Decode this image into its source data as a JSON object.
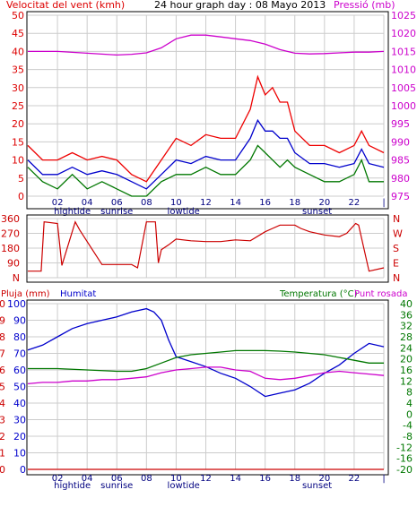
{
  "header": {
    "left": "Velocitat del vent (kmh)",
    "center": "24 hour graph day : 08 Mayo 2013",
    "right": "Pressió (mb)"
  },
  "colors": {
    "wind": "#dd0000",
    "wind_dir": "#cc0000",
    "pressure": "#cc00cc",
    "gust": "#ee0000",
    "mean": "#0000cc",
    "green": "#007700",
    "humidity": "#0000cc",
    "temperature": "#007700",
    "dewpoint": "#cc00cc",
    "rain": "#cc0000",
    "grid": "#cccccc"
  },
  "x_ticks": [
    "02",
    "04",
    "06",
    "08",
    "10",
    "12",
    "14",
    "16",
    "18",
    "20",
    "22",
    "|"
  ],
  "x_events": [
    "hightide",
    "sunrise",
    "lowtide",
    "sunset"
  ],
  "chart_data": [
    {
      "name": "wind_pressure",
      "type": "line",
      "ylim_left": [
        0,
        50
      ],
      "yticks_left": [
        "0",
        "5",
        "10",
        "15",
        "20",
        "25",
        "30",
        "35",
        "40",
        "45",
        "50"
      ],
      "ylim_right": [
        975,
        1025
      ],
      "yticks_right": [
        "975",
        "980",
        "985",
        "990",
        "995",
        "1000",
        "1005",
        "1010",
        "1015",
        "1020",
        "1025"
      ],
      "series": [
        {
          "key": "pressure",
          "axis": "right",
          "x": [
            0,
            2,
            4,
            6,
            7,
            8,
            9,
            10,
            11,
            12,
            13,
            14,
            15,
            16,
            17,
            18,
            19,
            20,
            21,
            22,
            23,
            24
          ],
          "y": [
            1015,
            1015,
            1014.5,
            1014,
            1014.2,
            1014.6,
            1016,
            1018.5,
            1019.5,
            1019.5,
            1019,
            1018.5,
            1018,
            1017,
            1015.5,
            1014.5,
            1014.3,
            1014.4,
            1014.6,
            1014.8,
            1014.8,
            1015
          ]
        },
        {
          "key": "gust",
          "axis": "left",
          "x": [
            0,
            1,
            2,
            3,
            4,
            5,
            6,
            7,
            8,
            9,
            10,
            11,
            12,
            13,
            14,
            15,
            15.5,
            16,
            16.5,
            17,
            17.5,
            18,
            19,
            20,
            21,
            22,
            22.5,
            23,
            24
          ],
          "y": [
            14,
            10,
            10,
            12,
            10,
            11,
            10,
            6,
            4,
            10,
            16,
            14,
            17,
            16,
            16,
            24,
            33,
            28,
            30,
            26,
            26,
            18,
            14,
            14,
            12,
            14,
            18,
            14,
            12
          ]
        },
        {
          "key": "mean",
          "axis": "left",
          "x": [
            0,
            1,
            2,
            3,
            4,
            5,
            6,
            7,
            8,
            9,
            10,
            11,
            12,
            13,
            14,
            15,
            15.5,
            16,
            16.5,
            17,
            17.5,
            18,
            19,
            20,
            21,
            22,
            22.5,
            23,
            24
          ],
          "y": [
            10,
            6,
            6,
            8,
            6,
            7,
            6,
            4,
            2,
            6,
            10,
            9,
            11,
            10,
            10,
            16,
            21,
            18,
            18,
            16,
            16,
            12,
            9,
            9,
            8,
            9,
            13,
            9,
            8
          ]
        },
        {
          "key": "green",
          "axis": "left",
          "x": [
            0,
            1,
            2,
            3,
            4,
            5,
            6,
            7,
            8,
            9,
            10,
            11,
            12,
            13,
            14,
            15,
            15.5,
            16,
            16.5,
            17,
            17.5,
            18,
            19,
            20,
            21,
            22,
            22.5,
            23,
            24
          ],
          "y": [
            8,
            4,
            2,
            6,
            2,
            4,
            2,
            0,
            0,
            4,
            6,
            6,
            8,
            6,
            6,
            10,
            14,
            12,
            10,
            8,
            10,
            8,
            6,
            4,
            4,
            6,
            10,
            4,
            4
          ]
        }
      ]
    },
    {
      "name": "wind_direction",
      "type": "scatter",
      "ylim": [
        0,
        360
      ],
      "yticks_left": [
        "N",
        "90",
        "180",
        "270",
        "360"
      ],
      "yticks_right": [
        "N",
        "E",
        "S",
        "W",
        "N"
      ],
      "series": [
        {
          "key": "wind_dir",
          "x": [
            0,
            0.9,
            1.1,
            2,
            2.3,
            3.2,
            3.5,
            5,
            6,
            7,
            7.4,
            8,
            8.6,
            8.8,
            9,
            9.5,
            10,
            11,
            12,
            13,
            14,
            15,
            16,
            16.5,
            17,
            18,
            18.4,
            19,
            20,
            21,
            21.5,
            22.1,
            22.3,
            23,
            24
          ],
          "y": [
            40,
            40,
            340,
            330,
            75,
            340,
            290,
            80,
            80,
            80,
            60,
            340,
            340,
            90,
            170,
            200,
            235,
            225,
            220,
            220,
            230,
            225,
            280,
            300,
            320,
            320,
            300,
            280,
            260,
            250,
            270,
            330,
            320,
            40,
            60
          ]
        }
      ]
    },
    {
      "name": "rain_humidity_temperature",
      "type": "line",
      "legend_left": [
        "Pluja (mm)",
        "Humitat"
      ],
      "legend_right": [
        "Temperatura (°C)",
        "Punt rosada"
      ],
      "yticks_rain": [
        "0",
        "1",
        "2",
        "3",
        "4",
        "5",
        "6",
        "7",
        "8",
        "9",
        "10"
      ],
      "yticks_humidity": [
        "0",
        "10",
        "20",
        "30",
        "40",
        "50",
        "60",
        "70",
        "80",
        "90",
        "100"
      ],
      "ylim_temperature": [
        -20,
        40
      ],
      "yticks_temperature": [
        "-20",
        "-16",
        "-12",
        "-8",
        "-4",
        "0",
        "4",
        "8",
        "12",
        "16",
        "20",
        "24",
        "28",
        "32",
        "36",
        "40"
      ],
      "series": [
        {
          "key": "humidity",
          "axis": "humidity",
          "x": [
            0,
            1,
            2,
            3,
            4,
            5,
            6,
            7,
            8,
            8.5,
            9,
            9.5,
            10,
            11,
            12,
            13,
            14,
            15,
            16,
            17,
            18,
            19,
            20,
            21,
            22,
            23,
            24
          ],
          "y": [
            72,
            75,
            80,
            85,
            88,
            90,
            92,
            95,
            97,
            95,
            90,
            78,
            68,
            65,
            62,
            58,
            55,
            50,
            44,
            46,
            48,
            52,
            58,
            63,
            70,
            76,
            74
          ]
        },
        {
          "key": "temperature",
          "axis": "temperature",
          "x": [
            0,
            2,
            4,
            6,
            7,
            8,
            9,
            10,
            11,
            12,
            13,
            14,
            15,
            16,
            17,
            18,
            19,
            20,
            21,
            22,
            23,
            24
          ],
          "y": [
            16.5,
            16.5,
            16,
            15.5,
            15.5,
            16.5,
            18.5,
            20.5,
            21.5,
            22,
            22.5,
            23,
            23,
            23,
            22.8,
            22.5,
            22,
            21.5,
            20.5,
            19.5,
            18.5,
            18.5
          ]
        },
        {
          "key": "dewpoint",
          "axis": "temperature",
          "x": [
            0,
            1,
            2,
            3,
            4,
            5,
            6,
            7,
            8,
            9,
            10,
            11,
            12,
            13,
            14,
            15,
            16,
            17,
            18,
            19,
            20,
            21,
            22,
            23,
            24
          ],
          "y": [
            11,
            11.5,
            11.5,
            12,
            12,
            12.5,
            12.5,
            13,
            13.5,
            15,
            16,
            16.5,
            17,
            17,
            16,
            15.5,
            13,
            12.5,
            13,
            14,
            15,
            15.5,
            15,
            14.5,
            14
          ]
        },
        {
          "key": "rain",
          "axis": "rain",
          "x": [
            0,
            24
          ],
          "y": [
            0,
            0
          ]
        }
      ]
    }
  ]
}
